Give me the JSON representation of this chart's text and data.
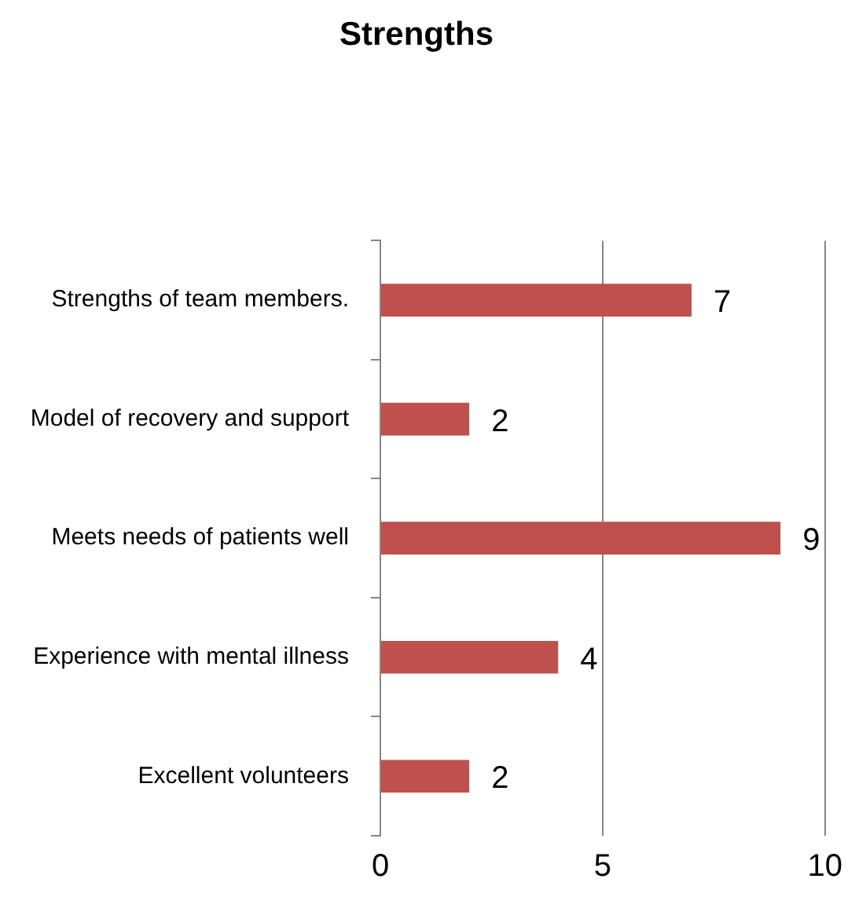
{
  "chart_data": {
    "type": "bar",
    "orientation": "horizontal",
    "title": "Strengths",
    "categories": [
      "Strengths of team members.",
      "Model of recovery and support",
      "Meets needs of patients well",
      "Experience with mental illness",
      "Excellent volunteers"
    ],
    "values": [
      7,
      2,
      9,
      4,
      2
    ],
    "color": "#c0504d",
    "xlim": [
      0,
      10
    ],
    "xticks": [
      0,
      5,
      10
    ],
    "grid": "x",
    "data_labels": true,
    "legend": false
  }
}
